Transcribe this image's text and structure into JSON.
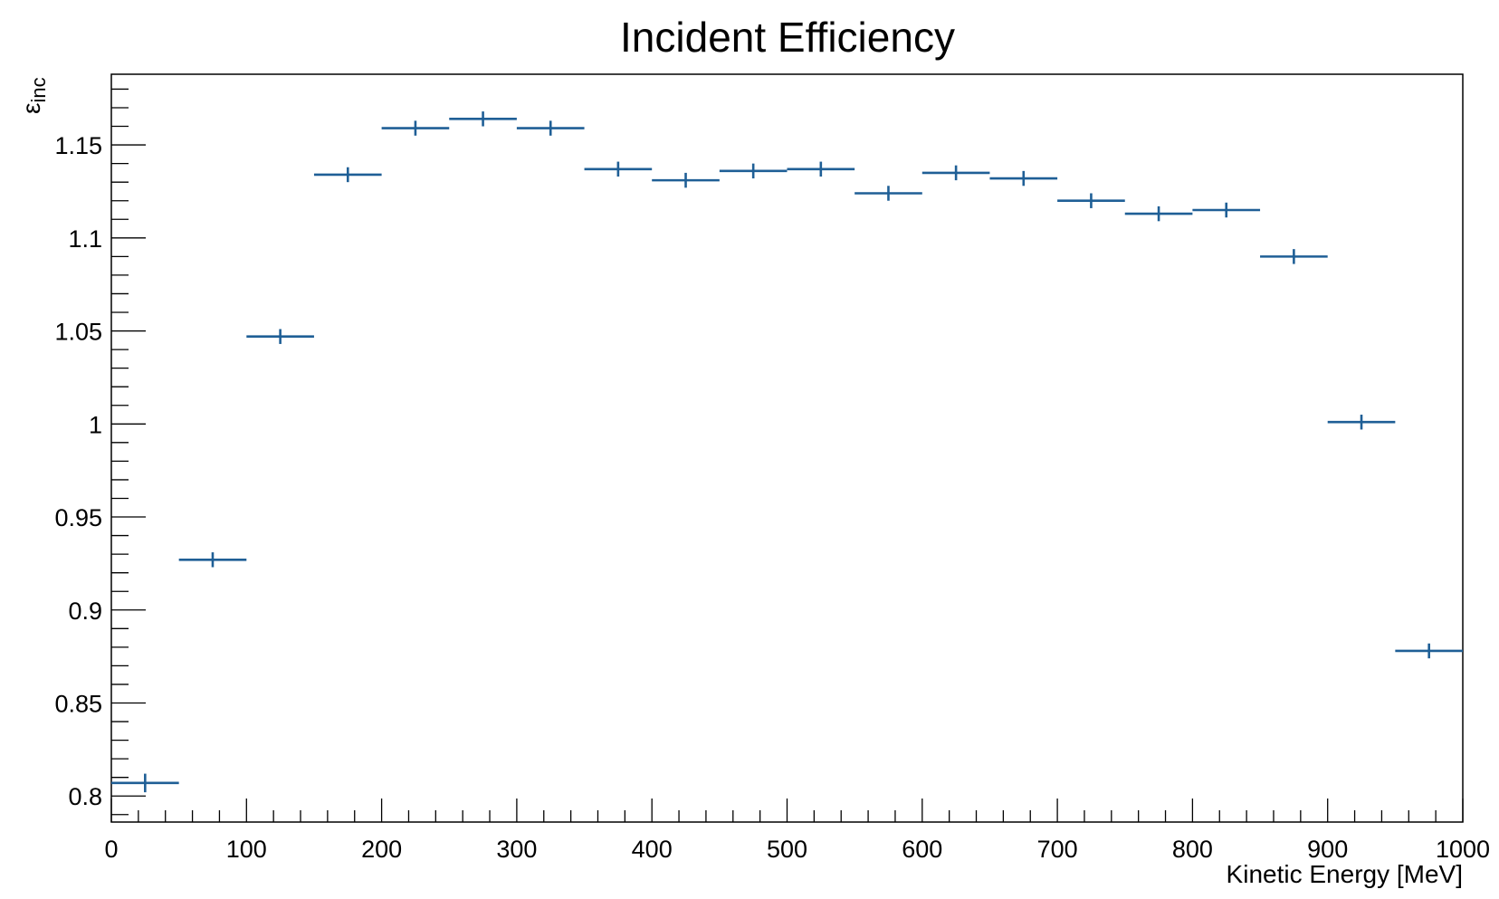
{
  "chart_data": {
    "type": "scatter",
    "title": "Incident Efficiency",
    "xlabel": "Kinetic Energy [MeV]",
    "ylabel": "ε",
    "ylabel_subscript": "inc",
    "xlim": [
      0,
      1000
    ],
    "ylim": [
      0.786,
      1.188
    ],
    "x_ticks": [
      0,
      100,
      200,
      300,
      400,
      500,
      600,
      700,
      800,
      900,
      1000
    ],
    "x_tick_labels": [
      "0",
      "100",
      "200",
      "300",
      "400",
      "500",
      "600",
      "700",
      "800",
      "900",
      "1000"
    ],
    "y_ticks": [
      0.8,
      0.85,
      0.9,
      0.95,
      1.0,
      1.05,
      1.1,
      1.15
    ],
    "y_tick_labels": [
      "0.8",
      "0.85",
      "0.9",
      "0.95",
      "1",
      "1.05",
      "1.1",
      "1.15"
    ],
    "grid": false,
    "marker_color": "#1f5f96",
    "series": [
      {
        "bins": [
          {
            "x_low": 0,
            "x_high": 50,
            "y": 0.807,
            "yerr": 0.005
          },
          {
            "x_low": 50,
            "x_high": 100,
            "y": 0.927,
            "yerr": 0.004
          },
          {
            "x_low": 100,
            "x_high": 150,
            "y": 1.047,
            "yerr": 0.004
          },
          {
            "x_low": 150,
            "x_high": 200,
            "y": 1.134,
            "yerr": 0.004
          },
          {
            "x_low": 200,
            "x_high": 250,
            "y": 1.159,
            "yerr": 0.004
          },
          {
            "x_low": 250,
            "x_high": 300,
            "y": 1.164,
            "yerr": 0.004
          },
          {
            "x_low": 300,
            "x_high": 350,
            "y": 1.159,
            "yerr": 0.004
          },
          {
            "x_low": 350,
            "x_high": 400,
            "y": 1.137,
            "yerr": 0.004
          },
          {
            "x_low": 400,
            "x_high": 450,
            "y": 1.131,
            "yerr": 0.004
          },
          {
            "x_low": 450,
            "x_high": 500,
            "y": 1.136,
            "yerr": 0.004
          },
          {
            "x_low": 500,
            "x_high": 550,
            "y": 1.137,
            "yerr": 0.004
          },
          {
            "x_low": 550,
            "x_high": 600,
            "y": 1.124,
            "yerr": 0.004
          },
          {
            "x_low": 600,
            "x_high": 650,
            "y": 1.135,
            "yerr": 0.004
          },
          {
            "x_low": 650,
            "x_high": 700,
            "y": 1.132,
            "yerr": 0.004
          },
          {
            "x_low": 700,
            "x_high": 750,
            "y": 1.12,
            "yerr": 0.004
          },
          {
            "x_low": 750,
            "x_high": 800,
            "y": 1.113,
            "yerr": 0.004
          },
          {
            "x_low": 800,
            "x_high": 850,
            "y": 1.115,
            "yerr": 0.004
          },
          {
            "x_low": 850,
            "x_high": 900,
            "y": 1.09,
            "yerr": 0.004
          },
          {
            "x_low": 900,
            "x_high": 950,
            "y": 1.001,
            "yerr": 0.004
          },
          {
            "x_low": 950,
            "x_high": 1000,
            "y": 0.878,
            "yerr": 0.004
          }
        ]
      }
    ]
  }
}
